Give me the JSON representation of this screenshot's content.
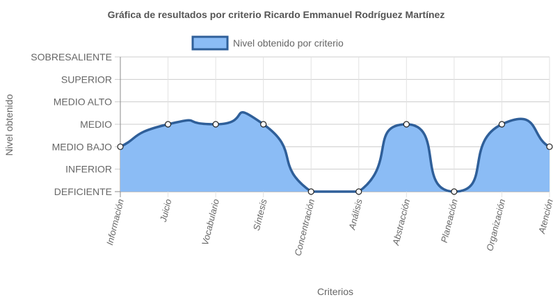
{
  "chart_data": {
    "type": "area",
    "title": "Gráfica de resultados por criterio Ricardo Emmanuel Rodríguez Martínez",
    "xlabel": "Criterios",
    "ylabel": "Nivel obtenido",
    "levels": [
      "DEFICIENTE",
      "INFERIOR",
      "MEDIO BAJO",
      "MEDIO",
      "MEDIO ALTO",
      "SUPERIOR",
      "SOBRESALIENTE"
    ],
    "categories": [
      "Información",
      "Juicio",
      "Vocabulario",
      "Síntesis",
      "Concentración",
      "Análisis",
      "Abstracción",
      "Planeación",
      "Organización",
      "Atención"
    ],
    "series": [
      {
        "name": "Nivel obtenido por criterio",
        "values": [
          "MEDIO BAJO",
          "MEDIO",
          "MEDIO",
          "MEDIO",
          "DEFICIENTE",
          "DEFICIENTE",
          "MEDIO",
          "DEFICIENTE",
          "MEDIO",
          "MEDIO BAJO"
        ],
        "color": "#2f5f99",
        "fill": "#8bbcf5"
      }
    ],
    "grid": true,
    "legend": "top-center"
  }
}
